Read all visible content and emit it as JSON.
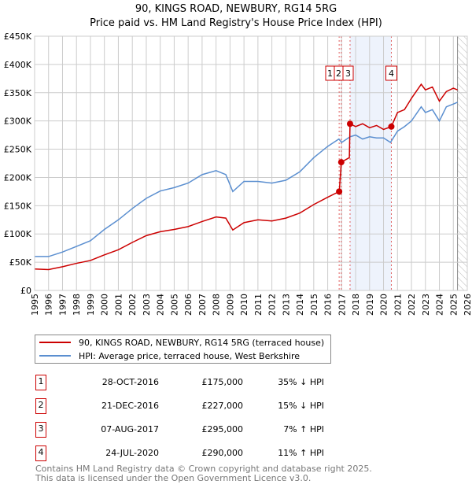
{
  "chart_data": {
    "type": "line",
    "title": "90, KINGS ROAD, NEWBURY, RG14 5RG",
    "subtitle": "Price paid vs. HM Land Registry's House Price Index (HPI)",
    "xlim": [
      1995,
      2026
    ],
    "ylim": [
      0,
      450000
    ],
    "x_ticks": [
      "1995",
      "1996",
      "1997",
      "1998",
      "1999",
      "2000",
      "2001",
      "2002",
      "2003",
      "2004",
      "2005",
      "2006",
      "2007",
      "2008",
      "2009",
      "2010",
      "2011",
      "2012",
      "2013",
      "2014",
      "2015",
      "2016",
      "2017",
      "2018",
      "2019",
      "2020",
      "2021",
      "2022",
      "2023",
      "2024",
      "2025",
      "2026"
    ],
    "y_ticks": [
      {
        "v": 0,
        "l": "£0"
      },
      {
        "v": 50000,
        "l": "£50K"
      },
      {
        "v": 100000,
        "l": "£100K"
      },
      {
        "v": 150000,
        "l": "£150K"
      },
      {
        "v": 200000,
        "l": "£200K"
      },
      {
        "v": 250000,
        "l": "£250K"
      },
      {
        "v": 300000,
        "l": "£300K"
      },
      {
        "v": 350000,
        "l": "£350K"
      },
      {
        "v": 400000,
        "l": "£400K"
      },
      {
        "v": 450000,
        "l": "£450K"
      }
    ],
    "grid": true,
    "shaded_range": [
      2017.6,
      2020.56
    ],
    "hatched_from": 2025.3,
    "series": [
      {
        "name": "90, KINGS ROAD, NEWBURY, RG14 5RG (terraced house)",
        "color": "#cc0000",
        "x": [
          1995,
          1996,
          1997,
          1998,
          1999,
          2000,
          2001,
          2002,
          2003,
          2004,
          2005,
          2006,
          2007,
          2008,
          2008.7,
          2009.2,
          2010,
          2011,
          2012,
          2013,
          2014,
          2015,
          2016,
          2016.82,
          2016.83,
          2016.97,
          2017.55,
          2017.6,
          2018,
          2018.5,
          2019,
          2019.5,
          2020,
          2020.56,
          2021,
          2021.5,
          2022,
          2022.7,
          2023,
          2023.5,
          2024,
          2024.5,
          2025,
          2025.3
        ],
        "y": [
          38000,
          37000,
          42000,
          48000,
          53000,
          63000,
          72000,
          85000,
          97000,
          104000,
          108000,
          113000,
          122000,
          130000,
          128000,
          107000,
          120000,
          125000,
          123000,
          128000,
          137000,
          152000,
          165000,
          175000,
          175000,
          227000,
          235000,
          295000,
          290000,
          295000,
          288000,
          292000,
          285000,
          290000,
          315000,
          320000,
          340000,
          365000,
          355000,
          360000,
          335000,
          352000,
          358000,
          355000
        ]
      },
      {
        "name": "HPI: Average price, terraced house, West Berkshire",
        "color": "#5b8fd0",
        "x": [
          1995,
          1996,
          1997,
          1998,
          1999,
          2000,
          2001,
          2002,
          2003,
          2004,
          2005,
          2006,
          2007,
          2008,
          2008.7,
          2009.2,
          2010,
          2011,
          2012,
          2013,
          2014,
          2015,
          2016,
          2016.8,
          2017,
          2017.6,
          2018,
          2018.5,
          2019,
          2019.5,
          2020,
          2020.5,
          2021,
          2021.5,
          2022,
          2022.7,
          2023,
          2023.5,
          2024,
          2024.5,
          2025,
          2025.3
        ],
        "y": [
          60000,
          60000,
          68000,
          78000,
          88000,
          108000,
          125000,
          145000,
          163000,
          176000,
          182000,
          190000,
          205000,
          212000,
          205000,
          175000,
          193000,
          193000,
          190000,
          195000,
          210000,
          235000,
          255000,
          268000,
          262000,
          272000,
          275000,
          268000,
          272000,
          270000,
          270000,
          262000,
          282000,
          290000,
          300000,
          325000,
          315000,
          320000,
          300000,
          325000,
          330000,
          333000
        ]
      }
    ],
    "sales": [
      {
        "n": "1",
        "x": 2016.82,
        "price": 175000
      },
      {
        "n": "2",
        "x": 2016.97,
        "price": 227000
      },
      {
        "n": "3",
        "x": 2017.6,
        "price": 295000
      },
      {
        "n": "4",
        "x": 2020.56,
        "price": 290000
      }
    ]
  },
  "legend": {
    "property": "90, KINGS ROAD, NEWBURY, RG14 5RG (terraced house)",
    "hpi": "HPI: Average price, terraced house, West Berkshire"
  },
  "table": [
    {
      "n": "1",
      "date": "28-OCT-2016",
      "price": "£175,000",
      "hpi": "35% ↓ HPI"
    },
    {
      "n": "2",
      "date": "21-DEC-2016",
      "price": "£227,000",
      "hpi": "15% ↓ HPI"
    },
    {
      "n": "3",
      "date": "07-AUG-2017",
      "price": "£295,000",
      "hpi": "7% ↑ HPI"
    },
    {
      "n": "4",
      "date": "24-JUL-2020",
      "price": "£290,000",
      "hpi": "11% ↑ HPI"
    }
  ],
  "footer": {
    "line1": "Contains HM Land Registry data © Crown copyright and database right 2025.",
    "line2": "This data is licensed under the Open Government Licence v3.0."
  }
}
